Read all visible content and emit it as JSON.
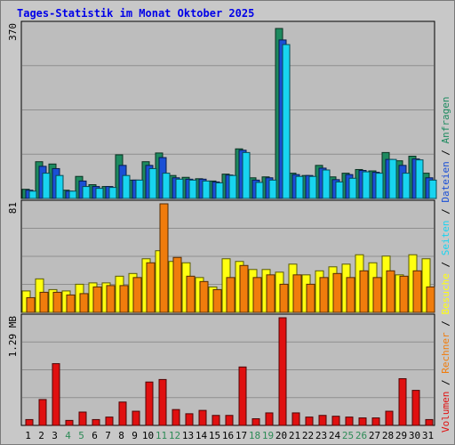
{
  "title": "Tages-Statistik im Monat Oktober 2025",
  "colors": {
    "frame": "#c8c8c8",
    "panel_bg": "#bdbdbd",
    "grid": "#8f8f8f",
    "title": "#0000e8",
    "anfragen": "#1d8a5f",
    "dateien": "#1a4fd6",
    "seiten": "#18d4f0",
    "besuche": "#ffff10",
    "rechner": "#f07c0c",
    "volumen": "#e01010",
    "weekend_day": "#2e8b57",
    "weekday": "#000000"
  },
  "chart_data": [
    {
      "type": "bar",
      "panel": "top",
      "ytick": "370",
      "ylim": [
        0,
        370
      ],
      "x": [
        1,
        2,
        3,
        4,
        5,
        6,
        7,
        8,
        9,
        10,
        11,
        12,
        13,
        14,
        15,
        16,
        17,
        18,
        19,
        20,
        21,
        22,
        23,
        24,
        25,
        26,
        27,
        28,
        29,
        30,
        31
      ],
      "series": [
        {
          "name": "Anfragen",
          "values": [
            20,
            80,
            75,
            18,
            48,
            30,
            26,
            95,
            40,
            80,
            99,
            50,
            46,
            43,
            38,
            53,
            108,
            45,
            47,
            370,
            55,
            50,
            72,
            47,
            55,
            63,
            60,
            100,
            82,
            92,
            55
          ]
        },
        {
          "name": "Dateien",
          "values": [
            18,
            70,
            65,
            16,
            38,
            26,
            26,
            72,
            40,
            72,
            89,
            45,
            42,
            42,
            36,
            51,
            105,
            40,
            45,
            345,
            52,
            50,
            66,
            41,
            52,
            61,
            57,
            85,
            72,
            86,
            45
          ]
        },
        {
          "name": "Seiten",
          "values": [
            16,
            55,
            50,
            16,
            26,
            22,
            24,
            50,
            40,
            65,
            55,
            42,
            40,
            38,
            34,
            50,
            100,
            35,
            40,
            335,
            48,
            48,
            62,
            36,
            44,
            58,
            55,
            85,
            55,
            84,
            40
          ]
        }
      ]
    },
    {
      "type": "bar",
      "panel": "middle",
      "ytick": "81",
      "ylim": [
        0,
        81
      ],
      "x": [
        1,
        2,
        3,
        4,
        5,
        6,
        7,
        8,
        9,
        10,
        11,
        12,
        13,
        14,
        15,
        16,
        17,
        18,
        19,
        20,
        21,
        22,
        23,
        24,
        25,
        26,
        27,
        28,
        29,
        30,
        31
      ],
      "series": [
        {
          "name": "Besuche",
          "values": [
            16,
            25,
            17,
            16,
            21,
            22,
            22,
            27,
            29,
            40,
            46,
            38,
            37,
            26,
            19,
            40,
            38,
            32,
            32,
            30,
            36,
            28,
            31,
            34,
            36,
            43,
            37,
            42,
            28,
            43,
            40
          ]
        },
        {
          "name": "Rechner",
          "values": [
            11,
            15,
            15,
            13,
            14,
            19,
            20,
            20,
            26,
            37,
            81,
            41,
            27,
            23,
            17,
            26,
            35,
            26,
            28,
            21,
            28,
            21,
            26,
            29,
            26,
            31,
            26,
            31,
            27,
            31,
            19
          ]
        }
      ]
    },
    {
      "type": "bar",
      "panel": "bottom",
      "ytick": "1.29 MB",
      "ylim": [
        0,
        1.29
      ],
      "x": [
        1,
        2,
        3,
        4,
        5,
        6,
        7,
        8,
        9,
        10,
        11,
        12,
        13,
        14,
        15,
        16,
        17,
        18,
        19,
        20,
        21,
        22,
        23,
        24,
        25,
        26,
        27,
        28,
        29,
        30,
        31
      ],
      "series": [
        {
          "name": "Volumen",
          "values": [
            0.07,
            0.31,
            0.74,
            0.06,
            0.16,
            0.07,
            0.1,
            0.28,
            0.17,
            0.52,
            0.55,
            0.19,
            0.14,
            0.18,
            0.12,
            0.12,
            0.7,
            0.08,
            0.15,
            1.29,
            0.15,
            0.1,
            0.12,
            0.11,
            0.1,
            0.09,
            0.09,
            0.17,
            0.56,
            0.42,
            0.07
          ]
        }
      ]
    }
  ],
  "x_labels": [
    "1",
    "2",
    "3",
    "4",
    "5",
    "6",
    "7",
    "8",
    "9",
    "10",
    "11",
    "12",
    "13",
    "14",
    "15",
    "16",
    "17",
    "18",
    "19",
    "20",
    "21",
    "22",
    "23",
    "24",
    "25",
    "26",
    "27",
    "28",
    "29",
    "30",
    "31"
  ],
  "weekend_days": [
    4,
    5,
    11,
    12,
    18,
    19,
    25,
    26
  ],
  "legend": {
    "volumen": "Volumen",
    "rechner": "Rechner",
    "besuche": "Besuche",
    "seiten": "Seiten",
    "dateien": "Dateien",
    "anfragen": "Anfragen",
    "separator": "/"
  }
}
